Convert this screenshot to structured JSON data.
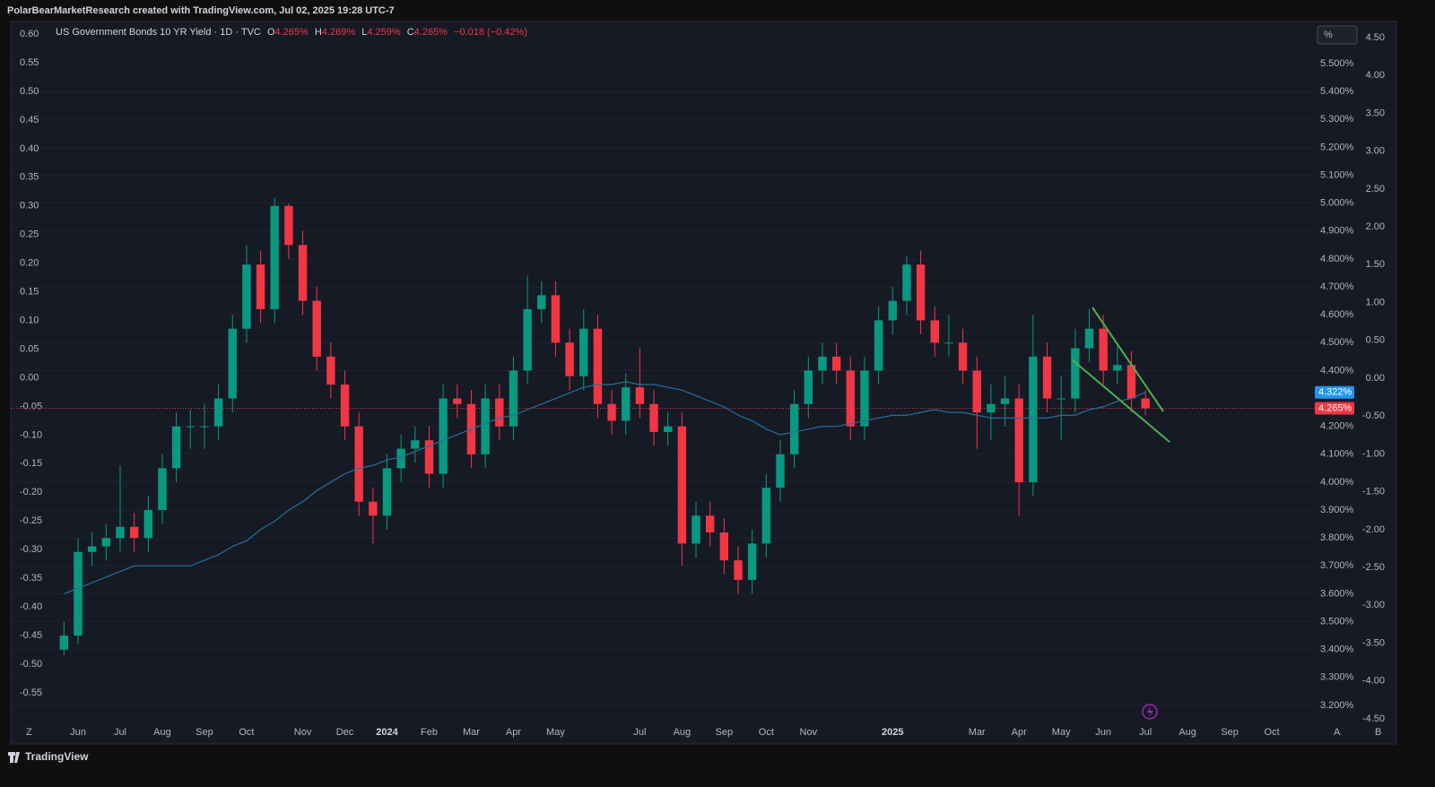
{
  "ui": {
    "top_bar": "PolarBearMarketResearch created with TradingView.com, Jul 02, 2025 19:28 UTC-7",
    "brand": "TradingView",
    "unit_button": "%",
    "corner_left": "Z",
    "corner_a": "A",
    "corner_b": "B",
    "legend": {
      "symbol": "US Government Bonds 10 YR Yield · 1D · TVC",
      "o_label": "O",
      "o": "4.265%",
      "h_label": "H",
      "h": "4.269%",
      "l_label": "L",
      "l": "4.259%",
      "c_label": "C",
      "c": "4.265%",
      "change": "−0.018 (−0.42%)"
    }
  },
  "chart_data": {
    "type": "candlestick",
    "categories": [
      null,
      "Jun",
      null,
      null,
      "Jul",
      null,
      null,
      "Aug",
      null,
      null,
      "Sep",
      null,
      null,
      "Oct",
      null,
      null,
      null,
      "Nov",
      null,
      null,
      "Dec",
      null,
      null,
      "2024",
      null,
      null,
      "Feb",
      null,
      null,
      "Mar",
      null,
      null,
      "Apr",
      null,
      null,
      "May",
      null,
      null,
      null,
      null,
      null,
      "Jul",
      null,
      null,
      "Aug",
      null,
      null,
      "Sep",
      null,
      null,
      "Oct",
      null,
      null,
      "Nov",
      null,
      null,
      null,
      null,
      null,
      "2025",
      null,
      null,
      null,
      null,
      null,
      "Mar",
      null,
      null,
      "Apr",
      null,
      null,
      "May",
      null,
      null,
      "Jun",
      null,
      null,
      "Jul",
      null,
      null,
      "Aug",
      null,
      null,
      "Sep",
      null,
      null,
      "Oct",
      null,
      null
    ],
    "open": [
      3.4,
      3.45,
      3.75,
      3.77,
      3.8,
      3.84,
      3.8,
      3.9,
      4.05,
      4.2,
      4.2,
      4.2,
      4.3,
      4.55,
      4.78,
      4.62,
      4.99,
      4.85,
      4.65,
      4.45,
      4.35,
      4.2,
      3.93,
      3.88,
      4.05,
      4.12,
      4.15,
      4.03,
      4.3,
      4.28,
      4.1,
      4.3,
      4.2,
      4.4,
      4.62,
      4.67,
      4.5,
      4.38,
      4.55,
      4.28,
      4.22,
      4.34,
      4.28,
      4.18,
      4.2,
      3.78,
      3.88,
      3.82,
      3.72,
      3.65,
      3.78,
      3.98,
      4.1,
      4.28,
      4.4,
      4.45,
      4.4,
      4.2,
      4.4,
      4.58,
      4.65,
      4.78,
      4.58,
      4.5,
      4.5,
      4.4,
      4.25,
      4.28,
      4.3,
      4.0,
      4.45,
      4.3,
      4.3,
      4.48,
      4.55,
      4.4,
      4.42,
      4.3,
      null,
      null,
      null,
      null,
      null,
      null,
      null,
      null,
      null,
      null,
      null
    ],
    "high": [
      3.5,
      3.8,
      3.82,
      3.85,
      4.06,
      3.89,
      3.95,
      4.1,
      4.25,
      4.26,
      4.28,
      4.35,
      4.6,
      4.85,
      4.83,
      5.02,
      5.0,
      4.9,
      4.7,
      4.5,
      4.4,
      4.25,
      3.98,
      4.1,
      4.17,
      4.2,
      4.2,
      4.35,
      4.35,
      4.33,
      4.35,
      4.35,
      4.45,
      4.74,
      4.72,
      4.72,
      4.55,
      4.62,
      4.6,
      4.33,
      4.39,
      4.48,
      4.33,
      4.25,
      4.25,
      3.93,
      3.93,
      3.87,
      3.77,
      3.83,
      4.03,
      4.15,
      4.33,
      4.45,
      4.5,
      4.5,
      4.45,
      4.45,
      4.63,
      4.7,
      4.81,
      4.83,
      4.63,
      4.6,
      4.55,
      4.45,
      4.35,
      4.38,
      4.35,
      4.6,
      4.5,
      4.38,
      4.55,
      4.62,
      4.6,
      4.5,
      4.47,
      4.33,
      null,
      null,
      null,
      null,
      null,
      null,
      null,
      null,
      null,
      null,
      null
    ],
    "low": [
      3.38,
      3.42,
      3.7,
      3.72,
      3.75,
      3.75,
      3.75,
      3.85,
      4.0,
      4.12,
      4.12,
      4.15,
      4.25,
      4.5,
      4.57,
      4.57,
      4.8,
      4.6,
      4.4,
      4.3,
      4.15,
      3.88,
      3.78,
      3.83,
      4.0,
      4.07,
      3.98,
      3.98,
      4.23,
      4.05,
      4.05,
      4.15,
      4.15,
      4.35,
      4.57,
      4.45,
      4.33,
      4.33,
      4.23,
      4.17,
      4.17,
      4.23,
      4.13,
      4.13,
      3.7,
      3.73,
      3.77,
      3.67,
      3.6,
      3.6,
      3.73,
      3.93,
      4.05,
      4.23,
      4.35,
      4.35,
      4.15,
      4.15,
      4.35,
      4.53,
      4.6,
      4.53,
      4.45,
      4.45,
      4.35,
      4.12,
      4.15,
      4.2,
      3.88,
      3.95,
      4.25,
      4.15,
      4.25,
      4.43,
      4.35,
      4.35,
      4.25,
      4.24,
      null,
      null,
      null,
      null,
      null,
      null,
      null,
      null,
      null,
      null,
      null
    ],
    "close": [
      3.45,
      3.75,
      3.77,
      3.8,
      3.84,
      3.8,
      3.9,
      4.05,
      4.2,
      4.2,
      4.2,
      4.3,
      4.55,
      4.78,
      4.62,
      4.99,
      4.85,
      4.65,
      4.45,
      4.35,
      4.2,
      3.93,
      3.88,
      4.05,
      4.12,
      4.15,
      4.03,
      4.3,
      4.28,
      4.1,
      4.3,
      4.2,
      4.4,
      4.62,
      4.67,
      4.5,
      4.38,
      4.55,
      4.28,
      4.22,
      4.34,
      4.28,
      4.18,
      4.2,
      3.78,
      3.88,
      3.82,
      3.72,
      3.65,
      3.78,
      3.98,
      4.1,
      4.28,
      4.4,
      4.45,
      4.4,
      4.2,
      4.4,
      4.58,
      4.65,
      4.78,
      4.58,
      4.5,
      4.5,
      4.4,
      4.25,
      4.28,
      4.3,
      4.0,
      4.45,
      4.3,
      4.3,
      4.48,
      4.55,
      4.4,
      4.42,
      4.3,
      4.265,
      null,
      null,
      null,
      null,
      null,
      null,
      null,
      null,
      null,
      null,
      null
    ],
    "up_color": "#089981",
    "down_color": "#f23645",
    "series": [
      {
        "color": "#2a6f97",
        "values": [
          3.6,
          3.62,
          3.64,
          3.66,
          3.68,
          3.7,
          3.7,
          3.7,
          3.7,
          3.7,
          3.72,
          3.74,
          3.77,
          3.79,
          3.83,
          3.86,
          3.9,
          3.93,
          3.97,
          4.0,
          4.03,
          4.05,
          4.06,
          4.08,
          4.09,
          4.11,
          4.13,
          4.15,
          4.17,
          4.19,
          4.21,
          4.23,
          4.24,
          4.26,
          4.28,
          4.3,
          4.32,
          4.34,
          4.35,
          4.35,
          4.36,
          4.35,
          4.35,
          4.34,
          4.33,
          4.31,
          4.29,
          4.27,
          4.24,
          4.22,
          4.19,
          4.17,
          4.18,
          4.19,
          4.2,
          4.2,
          4.21,
          4.22,
          4.23,
          4.24,
          4.24,
          4.25,
          4.26,
          4.25,
          4.25,
          4.24,
          4.23,
          4.23,
          4.23,
          4.23,
          4.23,
          4.24,
          4.24,
          4.26,
          4.27,
          4.29,
          4.3,
          4.322,
          null,
          null,
          null,
          null,
          null,
          null,
          null,
          null,
          null,
          null,
          null
        ]
      }
    ],
    "price_labels": [
      {
        "value": 4.322,
        "label": "4.322%",
        "color": "#2196f3"
      },
      {
        "value": 4.265,
        "label": "4.265%",
        "color": "#f23645"
      }
    ],
    "ylim": [
      3.126,
      5.651
    ],
    "yticks": [
      {
        "value": 5.5,
        "label": "5.500%"
      },
      {
        "value": 5.4,
        "label": "5.400%"
      },
      {
        "value": 5.3,
        "label": "5.300%"
      },
      {
        "value": 5.2,
        "label": "5.200%"
      },
      {
        "value": 5.1,
        "label": "5.100%"
      },
      {
        "value": 5.0,
        "label": "5.000%"
      },
      {
        "value": 4.9,
        "label": "4.900%"
      },
      {
        "value": 4.8,
        "label": "4.800%"
      },
      {
        "value": 4.7,
        "label": "4.700%"
      },
      {
        "value": 4.6,
        "label": "4.600%"
      },
      {
        "value": 4.5,
        "label": "4.500%"
      },
      {
        "value": 4.4,
        "label": "4.400%"
      },
      {
        "value": 4.2,
        "label": "4.200%"
      },
      {
        "value": 4.1,
        "label": "4.100%"
      },
      {
        "value": 4.0,
        "label": "4.000%"
      },
      {
        "value": 3.9,
        "label": "3.900%"
      },
      {
        "value": 3.8,
        "label": "3.800%"
      },
      {
        "value": 3.7,
        "label": "3.700%"
      },
      {
        "value": 3.6,
        "label": "3.600%"
      },
      {
        "value": 3.5,
        "label": "3.500%"
      },
      {
        "value": 3.4,
        "label": "3.400%"
      },
      {
        "value": 3.3,
        "label": "3.300%"
      },
      {
        "value": 3.2,
        "label": "3.200%"
      }
    ],
    "left_axis": {
      "ylim": [
        -0.608,
        0.622
      ],
      "yticks": [
        {
          "value": 0.6,
          "label": "0.60"
        },
        {
          "value": 0.55,
          "label": "0.55"
        },
        {
          "value": 0.5,
          "label": "0.50"
        },
        {
          "value": 0.45,
          "label": "0.45"
        },
        {
          "value": 0.4,
          "label": "0.40"
        },
        {
          "value": 0.35,
          "label": "0.35"
        },
        {
          "value": 0.3,
          "label": "0.30"
        },
        {
          "value": 0.25,
          "label": "0.25"
        },
        {
          "value": 0.2,
          "label": "0.20"
        },
        {
          "value": 0.15,
          "label": "0.15"
        },
        {
          "value": 0.1,
          "label": "0.10"
        },
        {
          "value": 0.05,
          "label": "0.05"
        },
        {
          "value": 0,
          "label": "0.00"
        },
        {
          "value": -0.05,
          "label": "-0.05"
        },
        {
          "value": -0.1,
          "label": "-0.10"
        },
        {
          "value": -0.15,
          "label": "-0.15"
        },
        {
          "value": -0.2,
          "label": "-0.20"
        },
        {
          "value": -0.25,
          "label": "-0.25"
        },
        {
          "value": -0.3,
          "label": "-0.30"
        },
        {
          "value": -0.35,
          "label": "-0.35"
        },
        {
          "value": -0.4,
          "label": "-0.40"
        },
        {
          "value": -0.45,
          "label": "-0.45"
        },
        {
          "value": -0.5,
          "label": "-0.50"
        },
        {
          "value": -0.55,
          "label": "-0.55"
        }
      ]
    },
    "outer_axis": {
      "ylim": [
        -4.595,
        4.713
      ],
      "yticks": [
        {
          "value": 4.5,
          "label": "4.50"
        },
        {
          "value": 4,
          "label": "4.00"
        },
        {
          "value": 3.5,
          "label": "3.50"
        },
        {
          "value": 3,
          "label": "3.00"
        },
        {
          "value": 2.5,
          "label": "2.50"
        },
        {
          "value": 2,
          "label": "2.00"
        },
        {
          "value": 1.5,
          "label": "1.50"
        },
        {
          "value": 1,
          "label": "1.00"
        },
        {
          "value": 0.5,
          "label": "0.50"
        },
        {
          "value": 0,
          "label": "0.00"
        },
        {
          "value": -0.5,
          "label": "-0.50"
        },
        {
          "value": -1,
          "label": "-1.00"
        },
        {
          "value": -1.5,
          "label": "-1.50"
        },
        {
          "value": -2,
          "label": "-2.00"
        },
        {
          "value": -2.5,
          "label": "-2.50"
        },
        {
          "value": -3,
          "label": "-3.00"
        },
        {
          "value": -3.5,
          "label": "-3.50"
        },
        {
          "value": -4,
          "label": "-4.00"
        },
        {
          "value": -4.5,
          "label": "-4.50"
        }
      ]
    }
  }
}
